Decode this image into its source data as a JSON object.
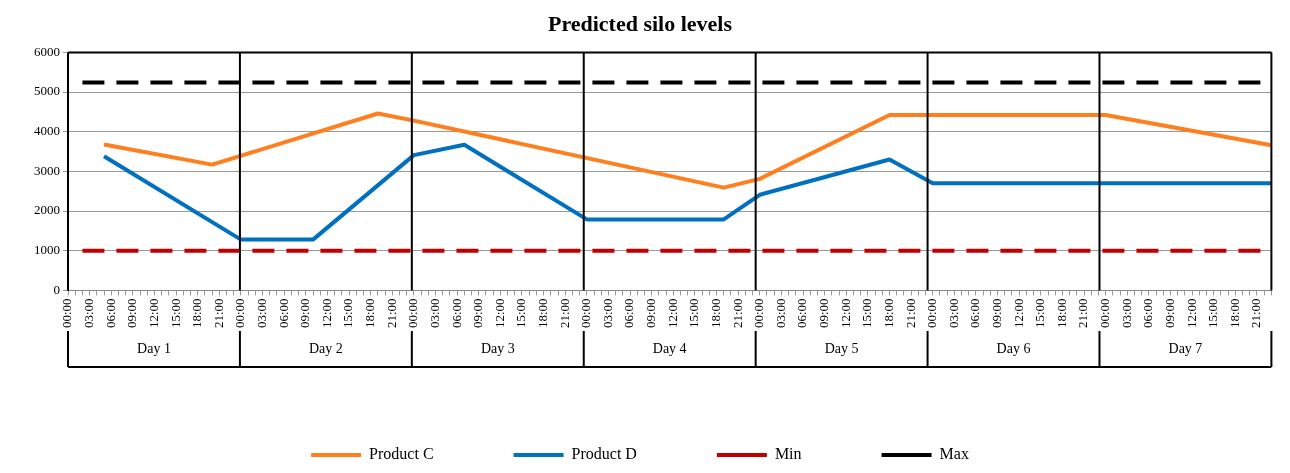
{
  "chart_data": {
    "type": "line",
    "title": "Predicted silo levels",
    "categories": [
      "00:00",
      null,
      null,
      "03:00",
      null,
      null,
      "06:00",
      null,
      null,
      "09:00",
      null,
      null,
      "12:00",
      null,
      null,
      "15:00",
      null,
      null,
      "18:00",
      null,
      null,
      "21:00",
      null,
      null,
      "00:00",
      null,
      null,
      "03:00",
      null,
      null,
      "06:00",
      null,
      null,
      "09:00",
      null,
      null,
      "12:00",
      null,
      null,
      "15:00",
      null,
      null,
      "18:00",
      null,
      null,
      "21:00",
      null,
      null,
      "00:00",
      null,
      null,
      "03:00",
      null,
      null,
      "06:00",
      null,
      null,
      "09:00",
      null,
      null,
      "12:00",
      null,
      null,
      "15:00",
      null,
      null,
      "18:00",
      null,
      null,
      "21:00",
      null,
      null,
      "00:00",
      null,
      null,
      "03:00",
      null,
      null,
      "06:00",
      null,
      null,
      "09:00",
      null,
      null,
      "12:00",
      null,
      null,
      "15:00",
      null,
      null,
      "18:00",
      null,
      null,
      "21:00",
      null,
      null,
      "00:00",
      null,
      null,
      "03:00",
      null,
      null,
      "06:00",
      null,
      null,
      "09:00",
      null,
      null,
      "12:00",
      null,
      null,
      "15:00",
      null,
      null,
      "18:00",
      null,
      null,
      "21:00",
      null,
      null,
      "00:00",
      null,
      null,
      "03:00",
      null,
      null,
      "06:00",
      null,
      null,
      "09:00",
      null,
      null,
      "12:00",
      null,
      null,
      "15:00",
      null,
      null,
      "18:00",
      null,
      null,
      "21:00",
      null,
      null,
      "00:00",
      null,
      null,
      "03:00",
      null,
      null,
      "06:00",
      null,
      null,
      "09:00",
      null,
      null,
      "12:00",
      null,
      null,
      "15:00",
      null,
      null,
      "18:00",
      null,
      null,
      "21:00",
      null,
      null
    ],
    "annotations": [
      "Day 1",
      "Day 2",
      "Day 3",
      "Day 4",
      "Day 5",
      "Day 6",
      "Day 7"
    ],
    "ylim": [
      0,
      6000
    ],
    "yticks": [
      0,
      1000,
      2000,
      3000,
      4000,
      5000,
      6000
    ],
    "grid": "y",
    "legend": "bottom",
    "marker": "none",
    "series": [
      {
        "name": "Product C",
        "color": "#ff7f1e",
        "line_style": "solid",
        "values": [
          null,
          null,
          null,
          null,
          null,
          3680,
          null,
          null,
          null,
          null,
          null,
          null,
          null,
          null,
          null,
          null,
          null,
          null,
          null,
          null,
          3170,
          null,
          null,
          null,
          null,
          null,
          null,
          null,
          null,
          null,
          null,
          null,
          null,
          null,
          null,
          null,
          null,
          null,
          null,
          null,
          null,
          null,
          null,
          4460,
          null,
          null,
          null,
          null,
          4280,
          null,
          null,
          null,
          null,
          null,
          null,
          null,
          null,
          null,
          null,
          null,
          null,
          null,
          null,
          null,
          null,
          null,
          null,
          null,
          null,
          null,
          null,
          null,
          null,
          null,
          null,
          null,
          null,
          null,
          null,
          null,
          null,
          null,
          null,
          null,
          null,
          null,
          null,
          null,
          null,
          null,
          null,
          2590,
          null,
          null,
          null,
          null,
          2810,
          null,
          null,
          null,
          null,
          null,
          null,
          null,
          null,
          null,
          null,
          null,
          null,
          null,
          null,
          null,
          null,
          null,
          4420,
          null,
          null,
          null,
          null,
          null,
          null,
          null,
          null,
          null,
          null,
          null,
          null,
          null,
          null,
          null,
          null,
          null,
          null,
          null,
          null,
          null,
          null,
          null,
          null,
          null,
          null,
          null,
          null,
          null,
          4420,
          null,
          null,
          null,
          null,
          null,
          null,
          null,
          null,
          null,
          null,
          null,
          null,
          null,
          null,
          null,
          null,
          null,
          null,
          null,
          null,
          null,
          null,
          3660
        ]
      },
      {
        "name": "Product D",
        "color": "#0070c0",
        "line_style": "solid",
        "values": [
          null,
          null,
          null,
          null,
          null,
          3380,
          null,
          null,
          null,
          null,
          null,
          null,
          null,
          null,
          null,
          null,
          null,
          null,
          null,
          null,
          null,
          null,
          null,
          null,
          1280,
          null,
          null,
          null,
          null,
          null,
          null,
          null,
          null,
          null,
          1280,
          null,
          null,
          null,
          null,
          null,
          null,
          null,
          null,
          null,
          null,
          null,
          null,
          null,
          3410,
          null,
          null,
          null,
          null,
          null,
          null,
          3670,
          null,
          null,
          null,
          null,
          null,
          null,
          null,
          null,
          null,
          null,
          null,
          null,
          null,
          null,
          null,
          null,
          1790,
          null,
          null,
          null,
          null,
          null,
          null,
          null,
          null,
          null,
          null,
          null,
          null,
          null,
          null,
          null,
          null,
          null,
          null,
          1790,
          null,
          null,
          null,
          null,
          2410,
          null,
          null,
          null,
          null,
          null,
          null,
          null,
          null,
          null,
          null,
          null,
          null,
          null,
          null,
          null,
          null,
          null,
          3300,
          null,
          null,
          null,
          null,
          null,
          2700,
          null,
          null,
          null,
          null,
          null,
          null,
          null,
          null,
          null,
          null,
          null,
          null,
          null,
          null,
          null,
          null,
          null,
          null,
          null,
          null,
          null,
          null,
          null,
          null,
          null,
          null,
          null,
          null,
          null,
          null,
          null,
          null,
          null,
          null,
          null,
          null,
          null,
          null,
          null,
          null,
          null,
          null,
          null,
          null,
          null,
          null,
          2700
        ]
      },
      {
        "name": "Min",
        "color": "#c00000",
        "line_style": "dashed",
        "values": [
          null,
          null,
          1000,
          null,
          null,
          null,
          null,
          null,
          null,
          null,
          null,
          null,
          null,
          null,
          null,
          null,
          null,
          null,
          null,
          null,
          null,
          null,
          null,
          null,
          null,
          null,
          null,
          null,
          null,
          null,
          null,
          null,
          null,
          null,
          null,
          null,
          null,
          null,
          null,
          null,
          null,
          null,
          null,
          null,
          null,
          null,
          null,
          null,
          null,
          null,
          null,
          null,
          null,
          null,
          null,
          null,
          null,
          null,
          null,
          null,
          null,
          null,
          null,
          null,
          null,
          null,
          null,
          null,
          null,
          null,
          null,
          null,
          null,
          null,
          null,
          null,
          null,
          null,
          null,
          null,
          null,
          null,
          null,
          null,
          null,
          null,
          null,
          null,
          null,
          null,
          null,
          null,
          null,
          null,
          null,
          null,
          null,
          null,
          null,
          null,
          null,
          null,
          null,
          null,
          null,
          null,
          null,
          null,
          null,
          null,
          null,
          null,
          null,
          null,
          null,
          null,
          null,
          null,
          null,
          null,
          null,
          null,
          null,
          null,
          null,
          null,
          null,
          null,
          null,
          null,
          null,
          null,
          null,
          null,
          null,
          null,
          null,
          null,
          null,
          null,
          null,
          null,
          null,
          null,
          null,
          null,
          null,
          null,
          null,
          null,
          null,
          null,
          null,
          null,
          null,
          null,
          null,
          null,
          null,
          null,
          null,
          null,
          null,
          null,
          null,
          null,
          1000,
          null
        ]
      },
      {
        "name": "Max",
        "color": "#000000",
        "line_style": "dashed",
        "values": [
          null,
          null,
          5240,
          null,
          null,
          null,
          null,
          null,
          null,
          null,
          null,
          null,
          null,
          null,
          null,
          null,
          null,
          null,
          null,
          null,
          null,
          null,
          null,
          null,
          null,
          null,
          null,
          null,
          null,
          null,
          null,
          null,
          null,
          null,
          null,
          null,
          null,
          null,
          null,
          null,
          null,
          null,
          null,
          null,
          null,
          null,
          null,
          null,
          null,
          null,
          null,
          null,
          null,
          null,
          null,
          null,
          null,
          null,
          null,
          null,
          null,
          null,
          null,
          null,
          null,
          null,
          null,
          null,
          null,
          null,
          null,
          null,
          null,
          null,
          null,
          null,
          null,
          null,
          null,
          null,
          null,
          null,
          null,
          null,
          null,
          null,
          null,
          null,
          null,
          null,
          null,
          null,
          null,
          null,
          null,
          null,
          null,
          null,
          null,
          null,
          null,
          null,
          null,
          null,
          null,
          null,
          null,
          null,
          null,
          null,
          null,
          null,
          null,
          null,
          null,
          null,
          null,
          null,
          null,
          null,
          null,
          null,
          null,
          null,
          null,
          null,
          null,
          null,
          null,
          null,
          null,
          null,
          null,
          null,
          null,
          null,
          null,
          null,
          null,
          null,
          null,
          null,
          null,
          null,
          null,
          null,
          null,
          null,
          null,
          null,
          null,
          null,
          null,
          null,
          null,
          null,
          null,
          null,
          null,
          null,
          null,
          null,
          null,
          null,
          null,
          null,
          5240,
          null
        ]
      }
    ]
  }
}
